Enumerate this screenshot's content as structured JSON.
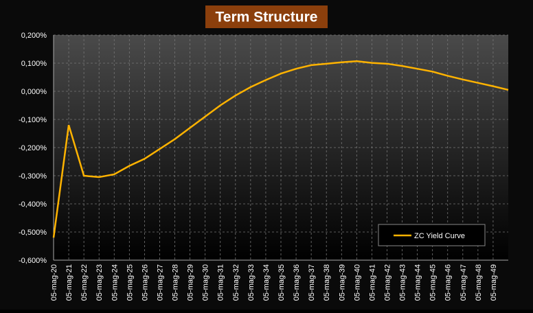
{
  "chart_data": {
    "type": "line",
    "title": "Term Structure",
    "categories": [
      "05-mag-20",
      "05-mag-21",
      "05-mag-22",
      "05-mag-23",
      "05-mag-24",
      "05-mag-25",
      "05-mag-26",
      "05-mag-27",
      "05-mag-28",
      "05-mag-29",
      "05-mag-30",
      "05-mag-31",
      "05-mag-32",
      "05-mag-33",
      "05-mag-34",
      "05-mag-35",
      "05-mag-36",
      "05-mag-37",
      "05-mag-38",
      "05-mag-39",
      "05-mag-40",
      "05-mag-41",
      "05-mag-42",
      "05-mag-43",
      "05-mag-44",
      "05-mag-45",
      "05-mag-46",
      "05-mag-47",
      "05-mag-48",
      "05-mag-49",
      null
    ],
    "series": [
      {
        "name": "ZC Yield Curve",
        "color": "#ffb300",
        "values": [
          -0.52,
          -0.12,
          -0.3,
          -0.305,
          -0.295,
          -0.265,
          -0.24,
          -0.205,
          -0.17,
          -0.13,
          -0.09,
          -0.05,
          -0.015,
          0.015,
          0.04,
          0.063,
          0.08,
          0.093,
          0.098,
          0.103,
          0.107,
          0.101,
          0.098,
          0.09,
          0.08,
          0.07,
          0.055,
          0.042,
          0.03,
          0.018,
          0.005
        ]
      }
    ],
    "ylim": [
      -0.6,
      0.2
    ],
    "yticks": [
      {
        "value": -0.6,
        "label": "-0,600%"
      },
      {
        "value": -0.5,
        "label": "-0,500%"
      },
      {
        "value": -0.4,
        "label": "-0,400%"
      },
      {
        "value": -0.3,
        "label": "-0,300%"
      },
      {
        "value": -0.2,
        "label": "-0,200%"
      },
      {
        "value": -0.1,
        "label": "-0,100%"
      },
      {
        "value": 0,
        "label": "0,000%"
      },
      {
        "value": 0.1,
        "label": "0,100%"
      },
      {
        "value": 0.2,
        "label": "0,200%"
      }
    ],
    "grid": true,
    "legend": "lower-right"
  }
}
